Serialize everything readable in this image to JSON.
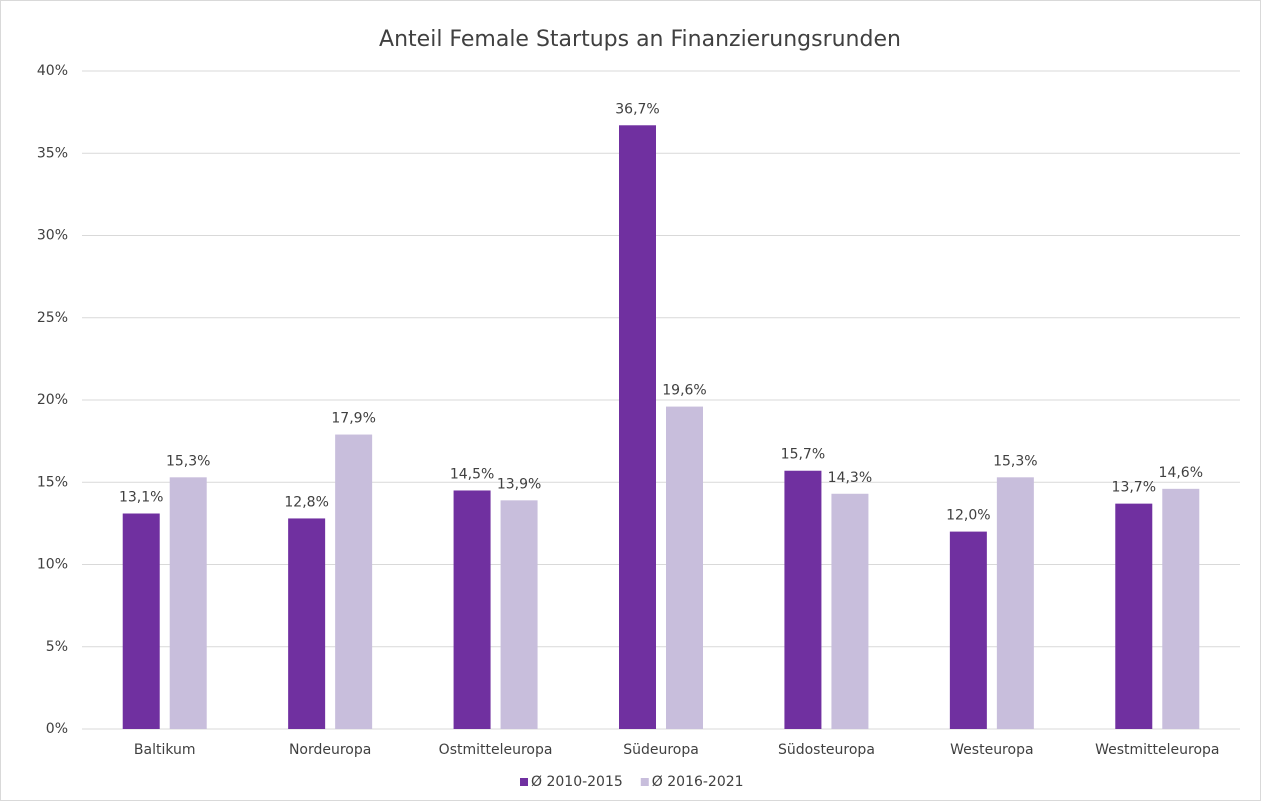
{
  "chart_data": {
    "type": "bar",
    "title": "Anteil Female Startups an Finanzierungsrunden",
    "categories": [
      "Baltikum",
      "Nordeuropa",
      "Ostmitteleuropa",
      "Südeuropa",
      "Südosteuropa",
      "Westeuropa",
      "Westmitteleuropa"
    ],
    "series": [
      {
        "name": "Ø 2010-2015",
        "color": "#7030a0",
        "values": [
          13.1,
          12.8,
          14.5,
          36.7,
          15.7,
          12.0,
          13.7
        ],
        "value_labels": [
          "13,1%",
          "12,8%",
          "14,5%",
          "36,7%",
          "15,7%",
          "12,0%",
          "13,7%"
        ]
      },
      {
        "name": "Ø 2016-2021",
        "color": "#c8bedc",
        "values": [
          15.3,
          17.9,
          13.9,
          19.6,
          14.3,
          15.3,
          14.6
        ],
        "value_labels": [
          "15,3%",
          "17,9%",
          "13,9%",
          "19,6%",
          "14,3%",
          "15,3%",
          "14,6%"
        ]
      }
    ],
    "ylim": [
      0,
      40
    ],
    "yticks": [
      {
        "value": 0,
        "label": "0%"
      },
      {
        "value": 5,
        "label": "5%"
      },
      {
        "value": 10,
        "label": "10%"
      },
      {
        "value": 15,
        "label": "15%"
      },
      {
        "value": 20,
        "label": "20%"
      },
      {
        "value": 25,
        "label": "25%"
      },
      {
        "value": 30,
        "label": "30%"
      },
      {
        "value": 35,
        "label": "35%"
      },
      {
        "value": 40,
        "label": "40%"
      }
    ],
    "grid": true,
    "legend": "bottom"
  }
}
